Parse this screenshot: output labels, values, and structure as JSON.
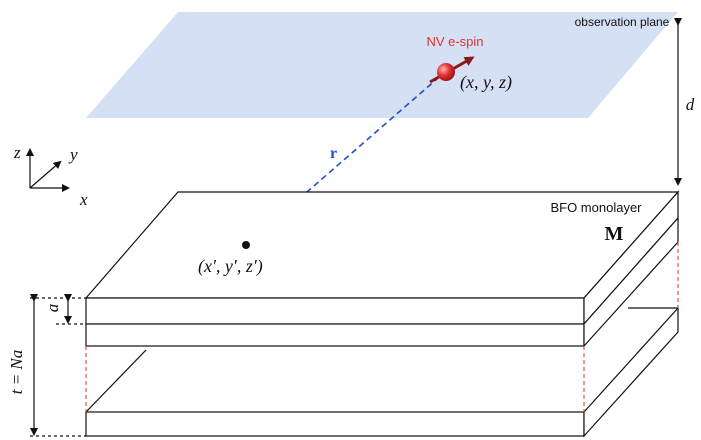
{
  "labels": {
    "observation_plane": "observation plane",
    "nv_spin": "NV e-spin",
    "spin_position": "(x, y, z)",
    "distance": "d",
    "vector_r": "r",
    "monolayer": "BFO monolayer",
    "magnetization": "M",
    "source_position": "(x′, y′, z′)",
    "axis_x": "x",
    "axis_y": "y",
    "axis_z": "z",
    "layer_thickness": "a",
    "total_thickness": "t = Na"
  },
  "colors": {
    "plane_fill": "#d6e0f5",
    "spin_red": "#e03030",
    "spin_arrow": "#8b1a1a",
    "vector_blue": "#2050d0",
    "dashed_red": "#d85a3a",
    "line": "#111111"
  },
  "icons": {
    "spin": "red-sphere-with-arrow",
    "axes": "xyz-coordinate-triad"
  }
}
